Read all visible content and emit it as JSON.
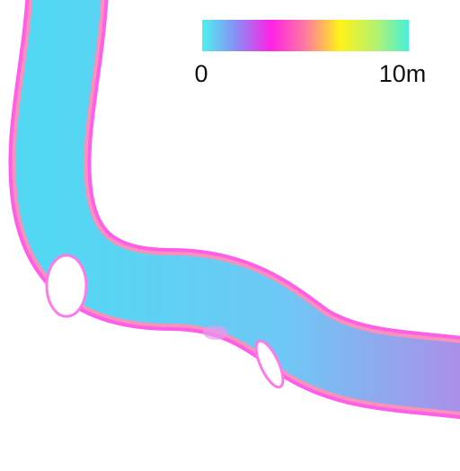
{
  "legend": {
    "labels": [
      "0",
      "10m"
    ],
    "colors": [
      "#4ff0f0",
      "#8a8cf5",
      "#ff22e6",
      "#ff7aa0",
      "#fff21a",
      "#b8f26a",
      "#48f0d8"
    ]
  }
}
